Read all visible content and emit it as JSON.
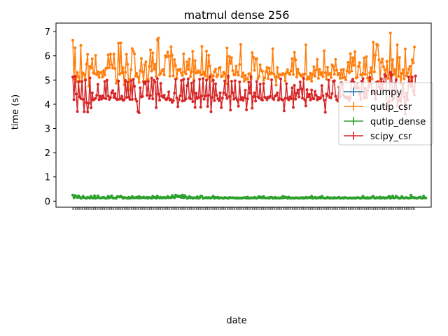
{
  "chart_data": {
    "type": "line",
    "title": "matmul dense 256",
    "xlabel": "date",
    "ylabel": "time (s)",
    "ylim": [
      -0.25,
      7.35
    ],
    "yticks": [
      0,
      1,
      2,
      3,
      4,
      5,
      6,
      7
    ],
    "grid": false,
    "legend_position": "center-right",
    "x_tick_count": 300,
    "x_tick_labels": [],
    "series": [
      {
        "name": "numpy",
        "color": "#1f77b4",
        "values": []
      },
      {
        "name": "qutip_csr",
        "color": "#ff7f0e",
        "values": [
          6.64,
          5.05,
          6.33,
          4.93,
          5.31,
          5.13,
          4.92,
          6.43,
          4.96,
          5.29,
          5.23,
          5.03,
          5.66,
          6.06,
          4.75,
          5.56,
          5.49,
          5.87,
          5.29,
          5.27,
          6.02,
          5.22,
          5.34,
          5.11,
          5.31,
          5.32,
          5.12,
          5.39,
          5.2,
          5.48,
          5.49,
          6.04,
          5.51,
          6.07,
          5.63,
          5.49,
          6.07,
          5.47,
          4.87,
          4.98,
          6.52,
          5.24,
          6.53,
          5.29,
          5.51,
          4.8,
          5.32,
          6.06,
          5.65,
          4.6,
          5.03,
          5.43,
          6.3,
          6.19,
          6.08,
          5.16,
          5.27,
          5.13,
          4.9,
          5.39,
          5.89,
          5.33,
          4.96,
          5.63,
          5.75,
          5.03,
          5.01,
          5.56,
          6.24,
          5.37,
          6.12,
          5.45,
          5.65,
          5.15,
          6.66,
          6.73,
          5.22,
          5.28,
          5.38,
          5.44,
          5.21,
          6.01,
          5.95,
          6.15,
          5.98,
          5.16,
          6.37,
          6.02,
          5.17,
          5.84,
          5.59,
          5.07,
          5.43,
          5.4,
          5.45,
          5.29,
          5.19,
          6.08,
          5.33,
          5.26,
          5.75,
          5.44,
          5.86,
          5.14,
          5.35,
          6.18,
          5.03,
          5.8,
          5.29,
          5.3,
          5.38,
          5.32,
          5.21,
          6.39,
          5.24,
          5.32,
          5.17,
          6.19,
          5.06,
          6.02,
          5.58,
          5.23,
          4.96,
          5.17,
          5.35,
          5.45,
          5.14,
          5.2,
          5.49,
          5.52,
          5.14,
          5.16,
          5.32,
          5.26,
          4.85,
          6.32,
          5.09,
          5.97,
          5.68,
          5.92,
          5.39,
          5.23,
          5.21,
          5.57,
          5.32,
          5.2,
          5.64,
          6.47,
          5.14,
          5.29,
          4.95,
          5.19,
          5.02,
          5.05,
          5.26,
          5.26,
          5.05,
          6.13,
          5.94,
          5.4,
          5.87,
          5.88,
          5.06,
          5.15,
          5.63,
          5.4,
          5.36,
          4.99,
          5.09,
          5.34,
          5.52,
          5.06,
          5.49,
          5.25,
          5.29,
          6.29,
          5.25,
          5.14,
          4.79,
          5.52,
          5.11,
          5.22,
          5.23,
          5.21,
          5.27,
          5.24,
          4.97,
          5.31,
          5.43,
          5.28,
          5.23,
          5.37,
          5.88,
          5.23,
          6.14,
          5.83,
          5.12,
          5.45,
          5.28,
          5.21,
          5.16,
          5.23,
          5.07,
          5.25,
          6.45,
          5.03,
          5.13,
          5.05,
          5.28,
          4.95,
          5.23,
          5.55,
          5.16,
          5.42,
          5.85,
          5.07,
          5.44,
          5.22,
          5.31,
          5.14,
          6.21,
          5.3,
          5.04,
          5.53,
          5.22,
          5.27,
          5.1,
          5.63,
          5.56,
          5.24,
          5.85,
          5.4,
          5.21,
          5.28,
          5.07,
          5.42,
          5.09,
          5.44,
          5.11,
          5.01,
          5.37,
          5.73,
          5.3,
          6.09,
          5.37,
          5.92,
          5.61,
          6.17,
          5.08,
          5.12,
          5.56,
          5.72,
          5.22,
          5.19,
          5.27,
          5.91,
          5.23,
          5.96,
          5.08,
          4.97,
          5.3,
          5.51,
          5.04,
          6.56,
          5.34,
          6.03,
          6.48,
          6.44,
          5.84,
          4.97,
          5.73,
          5.87,
          5.55,
          5.43,
          5.15,
          5.77,
          5.07,
          5.23,
          6.94,
          5.17,
          5.84,
          5.23,
          5.43,
          5.04,
          6.45,
          5.15,
          5.93,
          4.82,
          5.27,
          5.43,
          5.05,
          6.28,
          5.18,
          5.28,
          5.45,
          5.56,
          4.92,
          5.84,
          5.71,
          6.36
        ]
      },
      {
        "name": "qutip_dense",
        "color": "#2ca02c",
        "values": [
          0.25,
          0.14,
          0.23,
          0.19,
          0.15,
          0.22,
          0.16,
          0.12,
          0.14,
          0.2,
          0.15,
          0.13,
          0.12,
          0.16,
          0.14,
          0.13,
          0.2,
          0.13,
          0.13,
          0.22,
          0.12,
          0.14,
          0.22,
          0.14,
          0.13,
          0.13,
          0.15,
          0.16,
          0.13,
          0.12,
          0.13,
          0.2,
          0.13,
          0.17,
          0.22,
          0.13,
          0.13,
          0.13,
          0.12,
          0.19,
          0.18,
          0.17,
          0.21,
          0.17,
          0.12,
          0.15,
          0.14,
          0.13,
          0.12,
          0.16,
          0.12,
          0.14,
          0.19,
          0.13,
          0.14,
          0.14,
          0.17,
          0.13,
          0.19,
          0.13,
          0.15,
          0.14,
          0.17,
          0.14,
          0.13,
          0.16,
          0.12,
          0.15,
          0.14,
          0.12,
          0.2,
          0.15,
          0.16,
          0.12,
          0.21,
          0.15,
          0.13,
          0.16,
          0.13,
          0.14,
          0.16,
          0.13,
          0.14,
          0.19,
          0.14,
          0.15,
          0.14,
          0.23,
          0.16,
          0.14,
          0.25,
          0.19,
          0.22,
          0.18,
          0.21,
          0.15,
          0.25,
          0.14,
          0.23,
          0.17,
          0.12,
          0.13,
          0.19,
          0.14,
          0.15,
          0.12,
          0.14,
          0.14,
          0.13,
          0.18,
          0.12,
          0.14,
          0.21,
          0.2,
          0.12,
          0.13,
          0.14,
          0.15,
          0.13,
          0.15,
          0.13,
          0.13,
          0.16,
          0.2,
          0.12,
          0.15,
          0.14,
          0.16,
          0.12,
          0.14,
          0.14,
          0.13,
          0.12,
          0.15,
          0.14,
          0.13,
          0.12,
          0.15,
          0.14,
          0.14,
          0.14,
          0.14,
          0.13,
          0.12,
          0.14,
          0.12,
          0.13,
          0.13,
          0.12,
          0.14,
          0.14,
          0.15,
          0.12,
          0.17,
          0.12,
          0.13,
          0.14,
          0.13,
          0.13,
          0.16,
          0.13,
          0.12,
          0.15,
          0.19,
          0.14,
          0.16,
          0.13,
          0.19,
          0.14,
          0.13,
          0.13,
          0.14,
          0.12,
          0.16,
          0.16,
          0.12,
          0.13,
          0.16,
          0.12,
          0.13,
          0.14,
          0.12,
          0.14,
          0.13,
          0.2,
          0.14,
          0.17,
          0.15,
          0.12,
          0.17,
          0.13,
          0.12,
          0.14,
          0.13,
          0.12,
          0.14,
          0.14,
          0.13,
          0.12,
          0.14,
          0.13,
          0.15,
          0.12,
          0.13,
          0.16,
          0.13,
          0.14,
          0.15,
          0.14,
          0.2,
          0.12,
          0.14,
          0.16,
          0.12,
          0.14,
          0.13,
          0.16,
          0.13,
          0.2,
          0.14,
          0.13,
          0.12,
          0.13,
          0.16,
          0.14,
          0.12,
          0.14,
          0.13,
          0.12,
          0.15,
          0.13,
          0.13,
          0.14,
          0.16,
          0.12,
          0.13,
          0.14,
          0.12,
          0.15,
          0.14,
          0.13,
          0.12,
          0.13,
          0.14,
          0.12,
          0.13,
          0.14,
          0.12,
          0.13,
          0.15,
          0.14,
          0.13,
          0.12,
          0.14,
          0.2,
          0.13,
          0.14,
          0.12,
          0.15,
          0.12,
          0.14,
          0.13,
          0.17,
          0.2,
          0.13,
          0.12,
          0.15,
          0.14,
          0.13,
          0.17,
          0.12,
          0.14,
          0.15,
          0.12,
          0.14,
          0.13,
          0.16,
          0.2,
          0.12,
          0.15,
          0.21,
          0.13,
          0.14,
          0.2,
          0.16,
          0.13,
          0.12,
          0.13,
          0.19,
          0.14,
          0.12,
          0.14,
          0.15,
          0.13,
          0.12,
          0.13,
          0.25,
          0.14,
          0.16,
          0.13,
          0.14,
          0.12,
          0.13,
          0.15,
          0.17,
          0.13,
          0.12,
          0.21,
          0.14,
          0.13
        ]
      },
      {
        "name": "scipy_csr",
        "color": "#d62728",
        "values": [
          5.13,
          4.19,
          5.15,
          4.42,
          3.7,
          4.94,
          4.31,
          4.23,
          4.94,
          4.2,
          3.69,
          4.99,
          4.07,
          3.68,
          4.04,
          5.08,
          3.85,
          4.47,
          4.18,
          4.21,
          4.25,
          4.37,
          4.82,
          4.19,
          4.33,
          4.21,
          4.34,
          4.26,
          4.94,
          4.23,
          4.99,
          4.34,
          4.2,
          4.28,
          4.48,
          4.56,
          4.28,
          4.44,
          4.22,
          4.19,
          4.96,
          4.21,
          4.22,
          4.33,
          4.16,
          4.19,
          4.98,
          4.28,
          4.91,
          4.29,
          4.2,
          4.97,
          4.2,
          5.03,
          4.74,
          4.21,
          4.12,
          3.7,
          3.65,
          4.68,
          4.3,
          4.32,
          4.92,
          4.85,
          4.93,
          4.37,
          4.94,
          4.24,
          4.36,
          5.08,
          4.22,
          4.99,
          4.92,
          3.86,
          5.06,
          4.42,
          4.17,
          4.86,
          4.33,
          4.29,
          4.37,
          4.22,
          4.19,
          4.25,
          4.51,
          4.17,
          4.2,
          4.08,
          4.15,
          4.46,
          5.03,
          4.26,
          3.9,
          4.19,
          4.35,
          4.98,
          4.13,
          5.04,
          4.16,
          4.22,
          4.77,
          5.05,
          4.27,
          4.22,
          4.87,
          4.11,
          4.95,
          3.87,
          4.46,
          4.24,
          4.28,
          5.03,
          3.88,
          4.34,
          5.06,
          4.21,
          4.34,
          4.99,
          3.91,
          4.37,
          5.14,
          3.69,
          4.28,
          4.99,
          4.15,
          4.84,
          4.37,
          4.22,
          4.15,
          4.47,
          3.86,
          4.25,
          4.47,
          4.96,
          4.39,
          4.24,
          5.17,
          4.32,
          3.76,
          4.95,
          4.48,
          4.21,
          4.97,
          4.26,
          4.17,
          3.92,
          4.92,
          4.2,
          4.28,
          4.16,
          4.27,
          4.58,
          3.77,
          4.22,
          4.91,
          4.46,
          5.14,
          3.84,
          4.31,
          4.47,
          4.13,
          4.94,
          4.31,
          4.26,
          4.83,
          4.2,
          4.17,
          4.86,
          4.29,
          4.26,
          4.19,
          4.3,
          4.27,
          4.33,
          5.01,
          4.24,
          4.2,
          4.33,
          4.37,
          4.47,
          4.17,
          4.23,
          5.05,
          4.19,
          4.18,
          3.73,
          4.25,
          4.85,
          4.24,
          4.18,
          4.3,
          4.23,
          4.68,
          3.87,
          4.78,
          4.21,
          4.46,
          4.59,
          4.3,
          4.92,
          4.63,
          4.25,
          5.06,
          4.19,
          3.93,
          4.6,
          4.31,
          4.41,
          4.18,
          4.59,
          4.24,
          4.22,
          4.53,
          4.37,
          4.18,
          4.29,
          4.22,
          4.26,
          4.77,
          4.35,
          4.17,
          3.67,
          4.42,
          4.36,
          4.99,
          4.28,
          4.27,
          4.44,
          4.95,
          4.97,
          4.33,
          4.19,
          4.13,
          4.7,
          4.31,
          4.89,
          4.81,
          4.38,
          4.28,
          4.3,
          4.24,
          4.31,
          4.16,
          4.27,
          4.93,
          5.03,
          4.91,
          4.7,
          4.65,
          4.86,
          4.68,
          4.41,
          4.2,
          4.95,
          5.06,
          4.26,
          4.66,
          4.28,
          4.55,
          4.73,
          5.11,
          4.83,
          4.48,
          4.44,
          4.56,
          4.21,
          4.91,
          4.93,
          4.72,
          4.63,
          5.05,
          4.66,
          4.91,
          5.23,
          5.17,
          3.78,
          4.09,
          4.11,
          5.32,
          5.23,
          4.17,
          4.25,
          4.87,
          5.0,
          3.92,
          4.15,
          4.25,
          4.12,
          4.45,
          4.84,
          4.31,
          3.6,
          4.46,
          4.18,
          5.13,
          4.91,
          4.74,
          5.12,
          4.53,
          4.39,
          5.17
        ]
      }
    ]
  }
}
